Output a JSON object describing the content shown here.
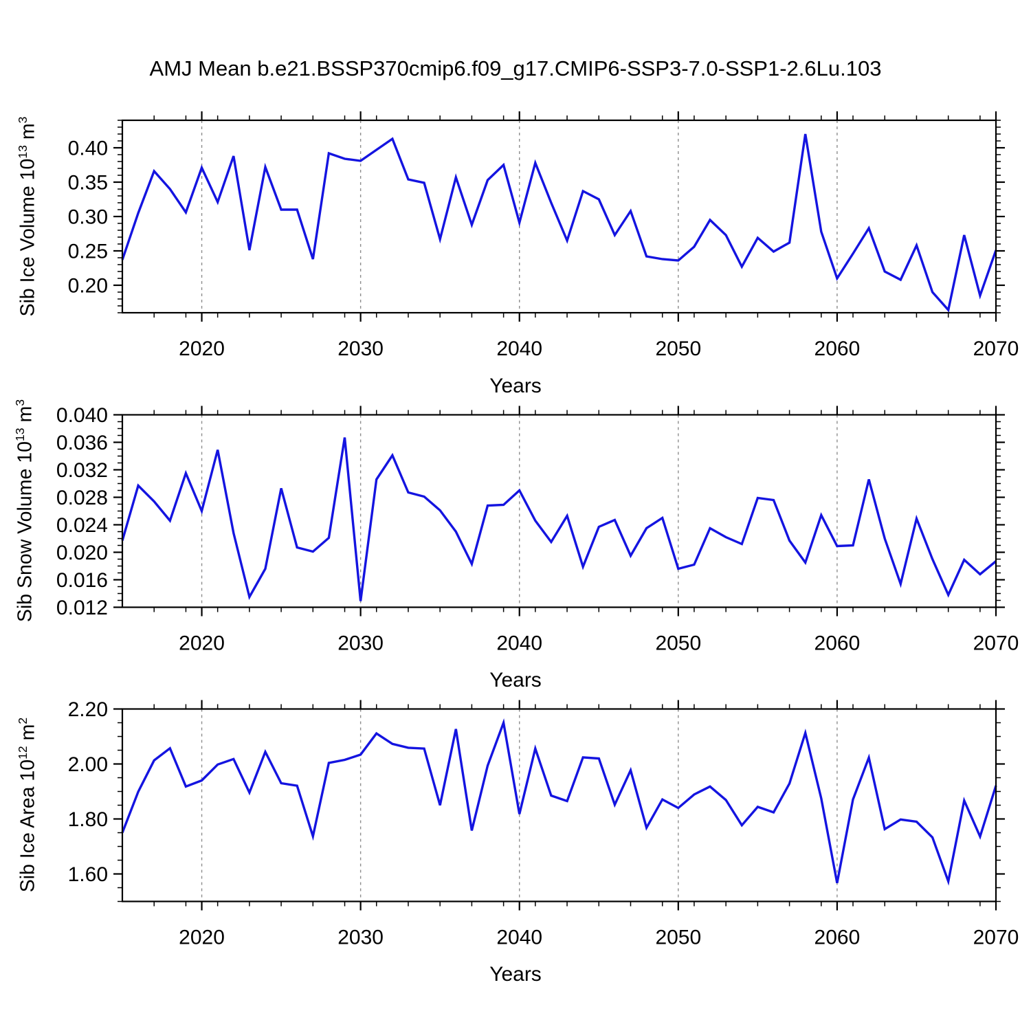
{
  "title": "AMJ Mean b.e21.BSSP370cmip6.f09_g17.CMIP6-SSP3-7.0-SSP1-2.6Lu.103",
  "line_color": "#1414e0",
  "grid_color": "#8c8c8c",
  "frame_color": "#000000",
  "chart_data": [
    {
      "type": "line",
      "panel": "top",
      "ylabel_text": "Sib Ice Volume 10^13 m^3",
      "ylabel_segments": [
        [
          "Sib Ice Volume 10",
          false
        ],
        [
          "13",
          true
        ],
        [
          " m",
          false
        ],
        [
          "3",
          true
        ]
      ],
      "xlabel": "Years",
      "xlim": [
        2015,
        2070
      ],
      "ylim": [
        0.16,
        0.44
      ],
      "x_major_ticks": [
        2020,
        2030,
        2040,
        2050,
        2060,
        2070
      ],
      "x_tick_labels": [
        "2020",
        "2030",
        "2040",
        "2050",
        "2060",
        "2070"
      ],
      "x_minor_step": 2,
      "y_major_ticks": [
        0.2,
        0.25,
        0.3,
        0.35,
        0.4
      ],
      "y_tick_labels": [
        "0.20",
        "0.25",
        "0.30",
        "0.35",
        "0.40"
      ],
      "y_minor_step": 0.01,
      "gridlines_x": [
        2020,
        2030,
        2040,
        2050,
        2060
      ],
      "grid_dashed": true,
      "years": [
        2015,
        2016,
        2017,
        2018,
        2019,
        2020,
        2021,
        2022,
        2023,
        2024,
        2025,
        2026,
        2027,
        2028,
        2029,
        2030,
        2031,
        2032,
        2033,
        2034,
        2035,
        2036,
        2037,
        2038,
        2039,
        2040,
        2041,
        2042,
        2043,
        2044,
        2045,
        2046,
        2047,
        2048,
        2049,
        2050,
        2051,
        2052,
        2053,
        2054,
        2055,
        2056,
        2057,
        2058,
        2059,
        2060,
        2061,
        2062,
        2063,
        2064,
        2065,
        2066,
        2067,
        2068,
        2069,
        2070
      ],
      "values": [
        0.237,
        0.305,
        0.366,
        0.34,
        0.306,
        0.371,
        0.321,
        0.388,
        0.251,
        0.372,
        0.31,
        0.31,
        0.238,
        0.392,
        0.384,
        0.381,
        0.397,
        0.413,
        0.354,
        0.349,
        0.267,
        0.357,
        0.288,
        0.353,
        0.375,
        0.291,
        0.378,
        0.32,
        0.265,
        0.337,
        0.325,
        0.273,
        0.308,
        0.242,
        0.238,
        0.236,
        0.256,
        0.295,
        0.273,
        0.227,
        0.269,
        0.249,
        0.262,
        0.42,
        0.278,
        0.21,
        0.246,
        0.283,
        0.22,
        0.208,
        0.258,
        0.19,
        0.164,
        0.273,
        0.185,
        0.251
      ]
    },
    {
      "type": "line",
      "panel": "middle",
      "ylabel_text": "Sib Snow Volume 10^13 m^3",
      "ylabel_segments": [
        [
          "Sib Snow Volume 10",
          false
        ],
        [
          "13",
          true
        ],
        [
          " m",
          false
        ],
        [
          "3",
          true
        ]
      ],
      "xlabel": "Years",
      "xlim": [
        2015,
        2070
      ],
      "ylim": [
        0.012,
        0.04
      ],
      "x_major_ticks": [
        2020,
        2030,
        2040,
        2050,
        2060,
        2070
      ],
      "x_tick_labels": [
        "2020",
        "2030",
        "2040",
        "2050",
        "2060",
        "2070"
      ],
      "x_minor_step": 2,
      "y_major_ticks": [
        0.012,
        0.016,
        0.02,
        0.024,
        0.028,
        0.032,
        0.036,
        0.04
      ],
      "y_tick_labels": [
        "0.012",
        "0.016",
        "0.020",
        "0.024",
        "0.028",
        "0.032",
        "0.036",
        "0.040"
      ],
      "y_minor_step": 0.001,
      "gridlines_x": [
        2020,
        2030,
        2040,
        2050,
        2060
      ],
      "grid_dashed": true,
      "years": [
        2015,
        2016,
        2017,
        2018,
        2019,
        2020,
        2021,
        2022,
        2023,
        2024,
        2025,
        2026,
        2027,
        2028,
        2029,
        2030,
        2031,
        2032,
        2033,
        2034,
        2035,
        2036,
        2037,
        2038,
        2039,
        2040,
        2041,
        2042,
        2043,
        2044,
        2045,
        2046,
        2047,
        2048,
        2049,
        2050,
        2051,
        2052,
        2053,
        2054,
        2055,
        2056,
        2057,
        2058,
        2059,
        2060,
        2061,
        2062,
        2063,
        2064,
        2065,
        2066,
        2067,
        2068,
        2069,
        2070
      ],
      "values": [
        0.0217,
        0.0297,
        0.0274,
        0.0246,
        0.0315,
        0.026,
        0.0349,
        0.0228,
        0.0135,
        0.0176,
        0.0293,
        0.0207,
        0.0201,
        0.0221,
        0.0367,
        0.0129,
        0.0306,
        0.0341,
        0.0287,
        0.0281,
        0.0261,
        0.023,
        0.0183,
        0.0268,
        0.0269,
        0.029,
        0.0246,
        0.0215,
        0.0253,
        0.0179,
        0.0237,
        0.0247,
        0.0195,
        0.0235,
        0.025,
        0.0176,
        0.0182,
        0.0235,
        0.0222,
        0.0212,
        0.0279,
        0.0276,
        0.0217,
        0.0185,
        0.0254,
        0.0209,
        0.021,
        0.0306,
        0.022,
        0.0154,
        0.0249,
        0.019,
        0.0138,
        0.0189,
        0.0168,
        0.0187
      ]
    },
    {
      "type": "line",
      "panel": "bottom",
      "ylabel_text": "Sib Ice Area 10^12 m^2",
      "ylabel_segments": [
        [
          "Sib Ice Area 10",
          false
        ],
        [
          "12",
          true
        ],
        [
          " m",
          false
        ],
        [
          "2",
          true
        ]
      ],
      "xlabel": "Years",
      "xlim": [
        2015,
        2070
      ],
      "ylim": [
        1.5,
        2.2
      ],
      "x_major_ticks": [
        2020,
        2030,
        2040,
        2050,
        2060,
        2070
      ],
      "x_tick_labels": [
        "2020",
        "2030",
        "2040",
        "2050",
        "2060",
        "2070"
      ],
      "x_minor_step": 2,
      "y_major_ticks": [
        1.6,
        1.8,
        2.0,
        2.2
      ],
      "y_tick_labels": [
        "1.60",
        "1.80",
        "2.00",
        "2.20"
      ],
      "y_minor_step": 0.05,
      "gridlines_x": [
        2020,
        2030,
        2040,
        2050,
        2060
      ],
      "grid_dashed": true,
      "years": [
        2015,
        2016,
        2017,
        2018,
        2019,
        2020,
        2021,
        2022,
        2023,
        2024,
        2025,
        2026,
        2027,
        2028,
        2029,
        2030,
        2031,
        2032,
        2033,
        2034,
        2035,
        2036,
        2037,
        2038,
        2039,
        2040,
        2041,
        2042,
        2043,
        2044,
        2045,
        2046,
        2047,
        2048,
        2049,
        2050,
        2051,
        2052,
        2053,
        2054,
        2055,
        2056,
        2057,
        2058,
        2059,
        2060,
        2061,
        2062,
        2063,
        2064,
        2065,
        2066,
        2067,
        2068,
        2069,
        2070
      ],
      "values": [
        1.75,
        1.899,
        2.013,
        2.057,
        1.918,
        1.94,
        1.998,
        2.018,
        1.896,
        2.044,
        1.93,
        1.921,
        1.737,
        2.004,
        2.015,
        2.034,
        2.111,
        2.073,
        2.059,
        2.056,
        1.85,
        2.127,
        1.758,
        1.994,
        2.15,
        1.818,
        2.056,
        1.885,
        1.865,
        2.024,
        2.02,
        1.852,
        1.977,
        1.768,
        1.871,
        1.84,
        1.889,
        1.918,
        1.869,
        1.777,
        1.844,
        1.824,
        1.929,
        2.113,
        1.875,
        1.567,
        1.871,
        2.023,
        1.763,
        1.798,
        1.79,
        1.733,
        1.573,
        1.867,
        1.736,
        1.921
      ]
    }
  ]
}
